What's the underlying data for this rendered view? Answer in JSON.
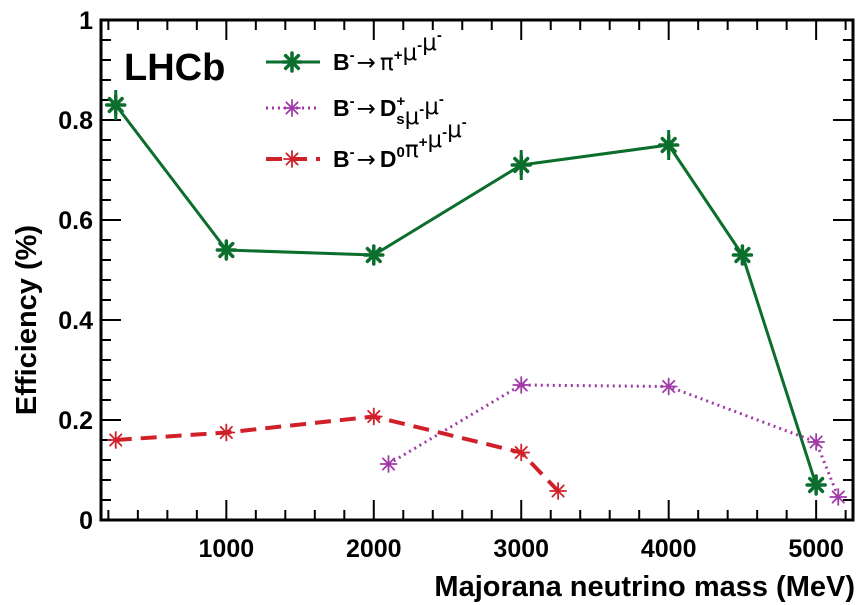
{
  "chart_data": {
    "type": "line",
    "title": "",
    "watermark": "LHCb",
    "xlabel": "Majorana neutrino mass (MeV)",
    "ylabel": "Efficiency (%)",
    "xlim": [
      150,
      5250
    ],
    "ylim": [
      0,
      1
    ],
    "x_ticks": [
      {
        "value": 1000,
        "label": "1000"
      },
      {
        "value": 2000,
        "label": "2000"
      },
      {
        "value": 3000,
        "label": "3000"
      },
      {
        "value": 4000,
        "label": "4000"
      },
      {
        "value": 5000,
        "label": "5000"
      }
    ],
    "y_ticks": [
      {
        "value": 0,
        "label": "0"
      },
      {
        "value": 0.2,
        "label": "0.2"
      },
      {
        "value": 0.4,
        "label": "0.4"
      },
      {
        "value": 0.6,
        "label": "0.6"
      },
      {
        "value": 0.8,
        "label": "0.8"
      },
      {
        "value": 1,
        "label": "1"
      }
    ],
    "grid": false,
    "legend_position": "top-left",
    "series": [
      {
        "legend": {
          "parent": "B",
          "parent_sup": "-",
          "arrow": "→",
          "products": [
            {
              "t": "π",
              "sup": "+"
            },
            {
              "t": "μ",
              "sup": "-"
            },
            {
              "t": "μ",
              "sup": "-"
            }
          ]
        },
        "color": "#0b6e2c",
        "dash": "solid",
        "marker": "star-bold",
        "points": [
          {
            "x": 250,
            "y": 0.83,
            "err": 0.03
          },
          {
            "x": 1000,
            "y": 0.54,
            "err": 0.015
          },
          {
            "x": 2000,
            "y": 0.53,
            "err": 0.015
          },
          {
            "x": 3000,
            "y": 0.71,
            "err": 0.03
          },
          {
            "x": 4000,
            "y": 0.75,
            "err": 0.03
          },
          {
            "x": 4500,
            "y": 0.53,
            "err": 0.015
          },
          {
            "x": 5000,
            "y": 0.07,
            "err": 0.01
          }
        ]
      },
      {
        "legend": {
          "parent": "B",
          "parent_sup": "-",
          "arrow": "→",
          "products": [
            {
              "t": "D",
              "sup": "+",
              "sub": "s"
            },
            {
              "t": "μ",
              "sup": "-"
            },
            {
              "t": "μ",
              "sup": "-"
            }
          ]
        },
        "color": "#a03aa8",
        "dash": "dotted",
        "marker": "star-thin",
        "points": [
          {
            "x": 2100,
            "y": 0.112
          },
          {
            "x": 3000,
            "y": 0.27
          },
          {
            "x": 4000,
            "y": 0.267
          },
          {
            "x": 5000,
            "y": 0.156
          },
          {
            "x": 5150,
            "y": 0.046
          }
        ]
      },
      {
        "legend": {
          "parent": "B",
          "parent_sup": "-",
          "arrow": "→",
          "products": [
            {
              "t": "D",
              "sup": "0"
            },
            {
              "t": "π",
              "sup": "+"
            },
            {
              "t": "μ",
              "sup": "-"
            },
            {
              "t": "μ",
              "sup": "-"
            }
          ]
        },
        "color": "#d0202a",
        "dash": "dashed",
        "marker": "star-thin",
        "points": [
          {
            "x": 250,
            "y": 0.16
          },
          {
            "x": 1000,
            "y": 0.175
          },
          {
            "x": 2000,
            "y": 0.207
          },
          {
            "x": 3000,
            "y": 0.135
          },
          {
            "x": 3250,
            "y": 0.058
          }
        ]
      }
    ]
  }
}
